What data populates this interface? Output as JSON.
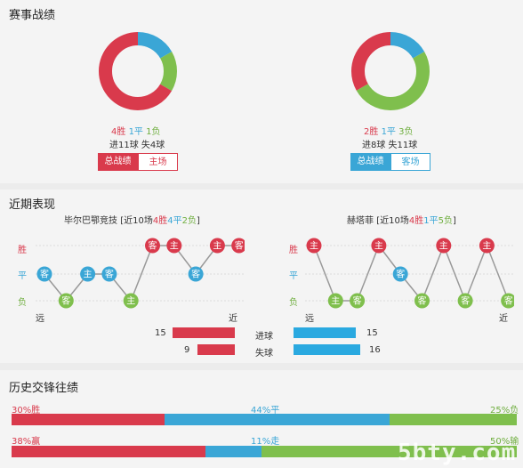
{
  "colors": {
    "win": "#d93a4c",
    "draw": "#3aa6d6",
    "loss": "#7fbf4d",
    "text": "#333333"
  },
  "record": {
    "title": "赛事战绩",
    "left": {
      "win": "4胜",
      "draw": "1平",
      "loss": "1负",
      "goals": "进11球 失4球",
      "ring": {
        "win": 4,
        "draw": 1,
        "loss": 1
      },
      "tabs": [
        "总战绩",
        "主场"
      ],
      "active_tab": 0
    },
    "right": {
      "win": "2胜",
      "draw": "1平",
      "loss": "3负",
      "goals": "进8球 失11球",
      "ring": {
        "win": 2,
        "draw": 1,
        "loss": 3
      },
      "tabs": [
        "总战绩",
        "客场"
      ],
      "active_tab": 0
    }
  },
  "recent": {
    "title": "近期表现",
    "left": {
      "team": "毕尔巴鄂竞技",
      "summary_pre": "[近10场",
      "w": "4胜",
      "d": "4平",
      "l": "2负",
      "summary_post": "]",
      "results": [
        "D",
        "L",
        "D",
        "D",
        "L",
        "W",
        "W",
        "D",
        "W",
        "W"
      ],
      "venues": [
        "客",
        "客",
        "主",
        "客",
        "主",
        "客",
        "主",
        "客",
        "主",
        "客"
      ]
    },
    "right": {
      "team": "赫塔菲",
      "summary_pre": "[近10场",
      "w": "4胜",
      "d": "1平",
      "l": "5负",
      "summary_post": "]",
      "results": [
        "W",
        "L",
        "L",
        "W",
        "D",
        "L",
        "W",
        "L",
        "W",
        "L"
      ],
      "venues": [
        "主",
        "主",
        "客",
        "主",
        "客",
        "客",
        "主",
        "客",
        "主",
        "客"
      ]
    },
    "axis": {
      "win": "胜",
      "draw": "平",
      "loss": "负",
      "far": "远",
      "near": "近"
    },
    "stats": [
      {
        "label": "进球",
        "left": 15,
        "right": 15
      },
      {
        "label": "失球",
        "left": 9,
        "right": 16
      }
    ],
    "stat_max": 16
  },
  "history": {
    "title": "历史交锋往绩",
    "row1": {
      "left": "30%胜",
      "mid": "44%平",
      "right": "25%负",
      "parts": [
        30,
        44,
        25
      ]
    },
    "row2": {
      "left": "38%赢",
      "mid": "11%走",
      "right": "50%输",
      "parts": [
        38,
        11,
        50
      ]
    }
  },
  "watermark": "5bty.com"
}
